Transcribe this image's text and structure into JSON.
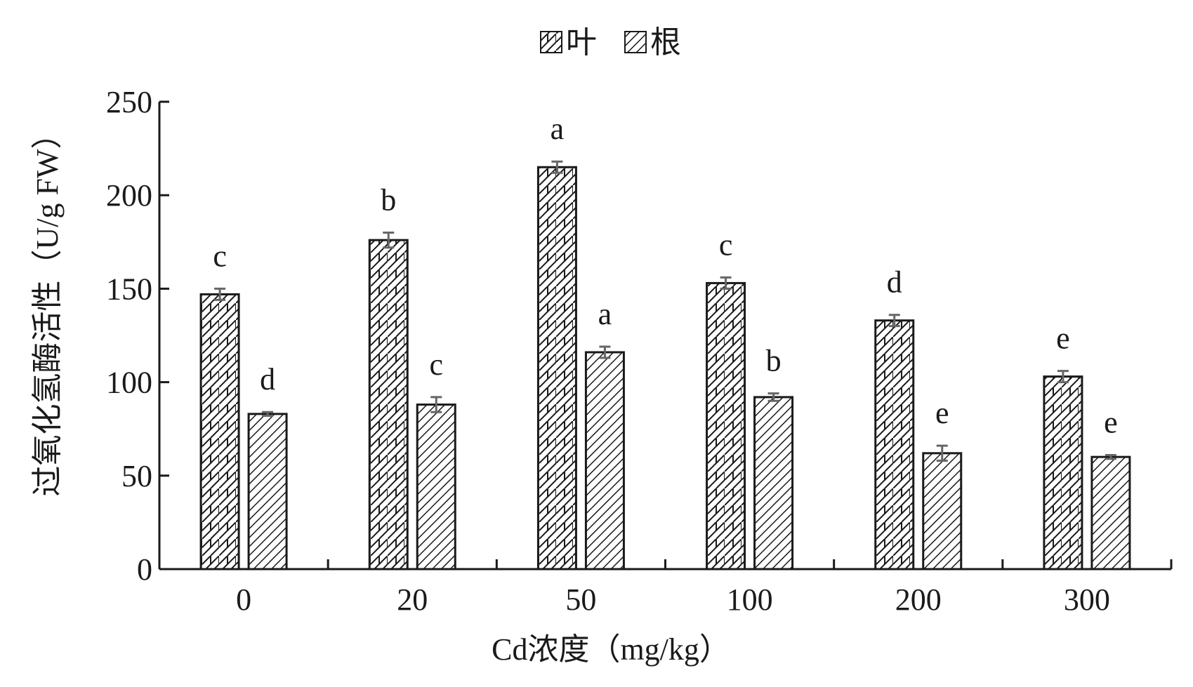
{
  "chart_data": {
    "type": "bar",
    "categories": [
      "0",
      "20",
      "50",
      "100",
      "200",
      "300"
    ],
    "series": [
      {
        "name": "叶",
        "pattern": "zigzag",
        "values": [
          147,
          176,
          215,
          153,
          133,
          103
        ],
        "errors": [
          3,
          4,
          3,
          3,
          3,
          3
        ],
        "letters": [
          "c",
          "b",
          "a",
          "c",
          "d",
          "e"
        ]
      },
      {
        "name": "根",
        "pattern": "diagonal",
        "values": [
          83,
          88,
          116,
          92,
          62,
          60
        ],
        "errors": [
          1,
          4,
          3,
          2,
          4,
          1
        ],
        "letters": [
          "d",
          "c",
          "a",
          "b",
          "e",
          "e"
        ]
      }
    ],
    "xlabel": "Cd浓度（mg/kg）",
    "ylabel": "过氧化氢酶活性（U/g FW）",
    "ylim": [
      0,
      250
    ],
    "yticks": [
      0,
      50,
      100,
      150,
      200,
      250
    ],
    "legend_position": "top-center",
    "grid": false,
    "colors": {
      "bar_fill": "#ffffff",
      "stroke": "#1a1a1a",
      "error_bar": "#666666"
    }
  }
}
